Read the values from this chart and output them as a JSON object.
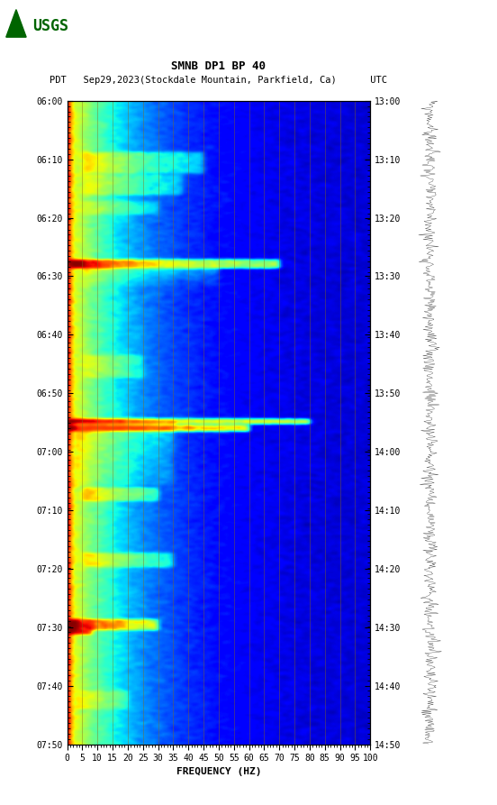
{
  "title_line1": "SMNB DP1 BP 40",
  "title_line2": "PDT   Sep29,2023(Stockdale Mountain, Parkfield, Ca)      UTC",
  "xlabel": "FREQUENCY (HZ)",
  "freq_ticks": [
    0,
    5,
    10,
    15,
    20,
    25,
    30,
    35,
    40,
    45,
    50,
    55,
    60,
    65,
    70,
    75,
    80,
    85,
    90,
    95,
    100
  ],
  "freq_min": 0,
  "freq_max": 100,
  "time_left_labels": [
    "06:00",
    "06:10",
    "06:20",
    "06:30",
    "06:40",
    "06:50",
    "07:00",
    "07:10",
    "07:20",
    "07:30",
    "07:40",
    "07:50"
  ],
  "time_right_labels": [
    "13:00",
    "13:10",
    "13:20",
    "13:30",
    "13:40",
    "13:50",
    "14:00",
    "14:10",
    "14:20",
    "14:30",
    "14:40",
    "14:50"
  ],
  "n_time_steps": 720,
  "n_freq_bins": 100,
  "bg_color": "#ffffff",
  "colormap": "jet",
  "vline_color": "#8B6914",
  "vline_alpha": 0.6,
  "vline_freqs": [
    5,
    10,
    15,
    20,
    25,
    30,
    35,
    40,
    45,
    50,
    55,
    60,
    65,
    70,
    75,
    80,
    85,
    90,
    95,
    100
  ],
  "usgs_color": "#006400",
  "font_size_title": 9,
  "font_size_labels": 8,
  "font_size_ticks": 7
}
